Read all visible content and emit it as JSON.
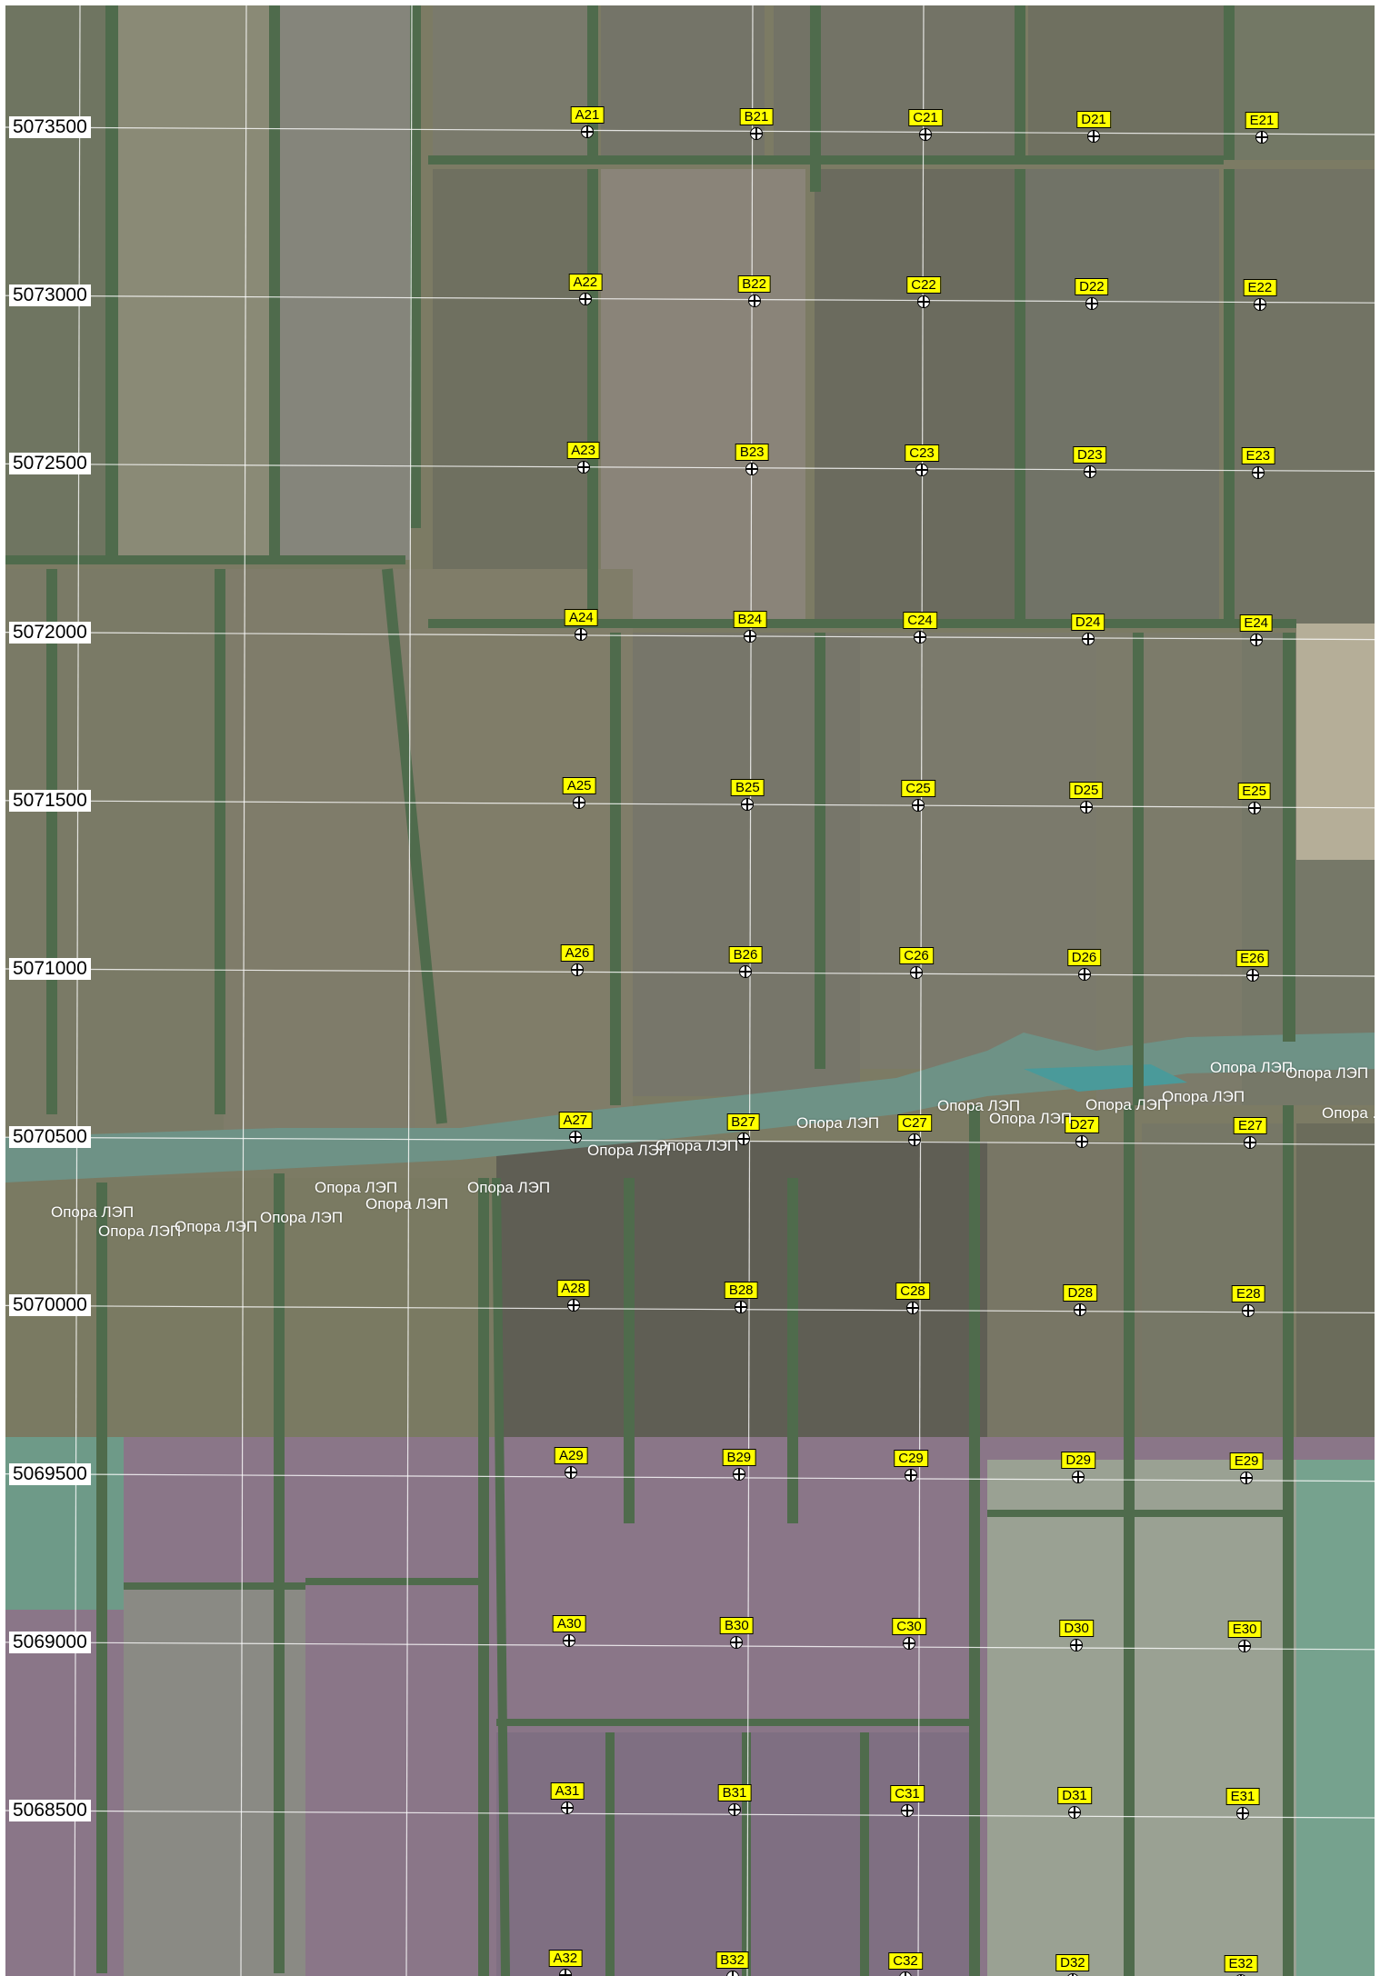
{
  "map": {
    "northings": [
      "5073500",
      "5073000",
      "5072500",
      "5072000",
      "5071500",
      "5071000",
      "5070500",
      "5070000",
      "5069500",
      "5069000",
      "5068500"
    ],
    "points": [
      {
        "id": "A21"
      },
      {
        "id": "B21"
      },
      {
        "id": "C21"
      },
      {
        "id": "D21"
      },
      {
        "id": "E21"
      },
      {
        "id": "A22"
      },
      {
        "id": "B22"
      },
      {
        "id": "C22"
      },
      {
        "id": "D22"
      },
      {
        "id": "E22"
      },
      {
        "id": "A23"
      },
      {
        "id": "B23"
      },
      {
        "id": "C23"
      },
      {
        "id": "D23"
      },
      {
        "id": "E23"
      },
      {
        "id": "A24"
      },
      {
        "id": "B24"
      },
      {
        "id": "C24"
      },
      {
        "id": "D24"
      },
      {
        "id": "E24"
      },
      {
        "id": "A25"
      },
      {
        "id": "B25"
      },
      {
        "id": "C25"
      },
      {
        "id": "D25"
      },
      {
        "id": "E25"
      },
      {
        "id": "A26"
      },
      {
        "id": "B26"
      },
      {
        "id": "C26"
      },
      {
        "id": "D26"
      },
      {
        "id": "E26"
      },
      {
        "id": "A27"
      },
      {
        "id": "B27"
      },
      {
        "id": "C27"
      },
      {
        "id": "D27"
      },
      {
        "id": "E27"
      },
      {
        "id": "A28"
      },
      {
        "id": "B28"
      },
      {
        "id": "C28"
      },
      {
        "id": "D28"
      },
      {
        "id": "E28"
      },
      {
        "id": "A29"
      },
      {
        "id": "B29"
      },
      {
        "id": "C29"
      },
      {
        "id": "D29"
      },
      {
        "id": "E29"
      },
      {
        "id": "A30"
      },
      {
        "id": "B30"
      },
      {
        "id": "C30"
      },
      {
        "id": "D30"
      },
      {
        "id": "E30"
      },
      {
        "id": "A31"
      },
      {
        "id": "B31"
      },
      {
        "id": "C31"
      },
      {
        "id": "D31"
      },
      {
        "id": "E31"
      },
      {
        "id": "A32"
      },
      {
        "id": "B32"
      },
      {
        "id": "C32"
      },
      {
        "id": "D32"
      },
      {
        "id": "E32"
      }
    ],
    "power_tower_label": "Опора ЛЭП",
    "power_tower_label_truncated": "Опора .",
    "colors": {
      "point_label_fill": "#ffff00",
      "grid_line": "#ffffff",
      "tower_label": "#ffffff",
      "field_base": "#7c7b64",
      "tree_belt": "#4f6b4c",
      "river": "#6e9286",
      "purple_zone": "#8a7688"
    }
  }
}
